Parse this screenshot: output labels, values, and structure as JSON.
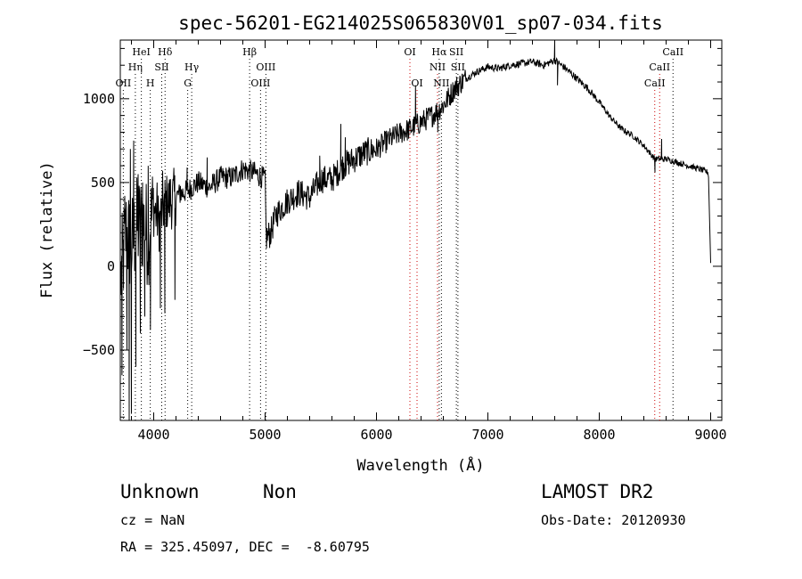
{
  "chart_data": {
    "type": "line",
    "title": "spec-56201-EG214025S065830V01_sp07-034.fits",
    "xlabel": "Wavelength (Å)",
    "ylabel": "Flux (relative)",
    "xlim": [
      3700,
      9100
    ],
    "ylim": [
      -920,
      1350
    ],
    "xticks": [
      4000,
      5000,
      6000,
      7000,
      8000,
      9000
    ],
    "yticks": [
      -500,
      0,
      500,
      1000
    ],
    "grid": false,
    "anchors": [
      [
        3700,
        -100
      ],
      [
        3750,
        200
      ],
      [
        3800,
        120
      ],
      [
        3850,
        230
      ],
      [
        3900,
        260
      ],
      [
        3950,
        180
      ],
      [
        4000,
        350
      ],
      [
        4050,
        260
      ],
      [
        4100,
        380
      ],
      [
        4150,
        390
      ],
      [
        4200,
        420
      ],
      [
        4300,
        450
      ],
      [
        4400,
        500
      ],
      [
        4500,
        470
      ],
      [
        4600,
        530
      ],
      [
        4700,
        530
      ],
      [
        4800,
        580
      ],
      [
        4900,
        560
      ],
      [
        5000,
        520
      ],
      [
        5010,
        170
      ],
      [
        5050,
        200
      ],
      [
        5100,
        310
      ],
      [
        5200,
        390
      ],
      [
        5300,
        440
      ],
      [
        5400,
        410
      ],
      [
        5500,
        520
      ],
      [
        5600,
        520
      ],
      [
        5700,
        600
      ],
      [
        5800,
        640
      ],
      [
        5900,
        680
      ],
      [
        6000,
        700
      ],
      [
        6100,
        750
      ],
      [
        6200,
        790
      ],
      [
        6300,
        820
      ],
      [
        6400,
        860
      ],
      [
        6500,
        900
      ],
      [
        6600,
        960
      ],
      [
        6700,
        1060
      ],
      [
        6800,
        1120
      ],
      [
        6900,
        1160
      ],
      [
        7000,
        1190
      ],
      [
        7100,
        1180
      ],
      [
        7200,
        1200
      ],
      [
        7300,
        1210
      ],
      [
        7400,
        1220
      ],
      [
        7500,
        1200
      ],
      [
        7600,
        1230
      ],
      [
        7700,
        1180
      ],
      [
        7800,
        1120
      ],
      [
        7900,
        1060
      ],
      [
        8000,
        980
      ],
      [
        8100,
        890
      ],
      [
        8200,
        820
      ],
      [
        8300,
        780
      ],
      [
        8400,
        720
      ],
      [
        8500,
        640
      ],
      [
        8600,
        640
      ],
      [
        8700,
        620
      ],
      [
        8800,
        600
      ],
      [
        8900,
        580
      ],
      [
        8980,
        560
      ],
      [
        9000,
        20
      ]
    ],
    "spikes": [
      [
        3715,
        -650
      ],
      [
        3740,
        420
      ],
      [
        3760,
        -500
      ],
      [
        3780,
        -920
      ],
      [
        3790,
        700
      ],
      [
        3800,
        -880
      ],
      [
        3820,
        750
      ],
      [
        3840,
        -600
      ],
      [
        3860,
        550
      ],
      [
        3880,
        -400
      ],
      [
        3900,
        500
      ],
      [
        3920,
        -300
      ],
      [
        3950,
        600
      ],
      [
        3970,
        -380
      ],
      [
        4030,
        500
      ],
      [
        4060,
        -250
      ],
      [
        4080,
        570
      ],
      [
        4100,
        -280
      ],
      [
        4120,
        450
      ],
      [
        4150,
        520
      ],
      [
        4190,
        -200
      ],
      [
        4240,
        480
      ],
      [
        4300,
        590
      ],
      [
        4480,
        650
      ],
      [
        4980,
        560
      ],
      [
        5490,
        660
      ],
      [
        5680,
        850
      ],
      [
        5720,
        770
      ],
      [
        6350,
        1080
      ],
      [
        6550,
        800
      ],
      [
        7600,
        1360
      ],
      [
        7625,
        1080
      ],
      [
        8500,
        560
      ],
      [
        8560,
        760
      ]
    ],
    "lines": [
      {
        "name": "OII",
        "wl": 3727,
        "row": 3,
        "color": "#000000"
      },
      {
        "name": "Hη",
        "wl": 3835,
        "row": 2,
        "color": "#000000"
      },
      {
        "name": "HeI",
        "wl": 3889,
        "row": 1,
        "color": "#000000"
      },
      {
        "name": "H",
        "wl": 3969,
        "row": 3,
        "color": "#000000"
      },
      {
        "name": "Hδ",
        "wl": 4102,
        "row": 1,
        "color": "#000000"
      },
      {
        "name": "SII",
        "wl": 4072,
        "row": 2,
        "color": "#000000"
      },
      {
        "name": "Hγ",
        "wl": 4341,
        "row": 2,
        "color": "#000000"
      },
      {
        "name": "G",
        "wl": 4305,
        "row": 3,
        "color": "#000000"
      },
      {
        "name": "Hβ",
        "wl": 4861,
        "row": 1,
        "color": "#000000"
      },
      {
        "name": "OIII",
        "wl": 4959,
        "row": 3,
        "color": "#000000"
      },
      {
        "name": "OIII",
        "wl": 5007,
        "row": 2,
        "color": "#000000"
      },
      {
        "name": "OI",
        "wl": 6300,
        "row": 1,
        "color": "#cc0000"
      },
      {
        "name": "OI",
        "wl": 6364,
        "row": 3,
        "color": "#cc0000"
      },
      {
        "name": "Hα",
        "wl": 6563,
        "row": 1,
        "color": "#000000"
      },
      {
        "name": "NII",
        "wl": 6548,
        "row": 2,
        "color": "#cc0000"
      },
      {
        "name": "NII",
        "wl": 6583,
        "row": 3,
        "color": "#000000"
      },
      {
        "name": "SII",
        "wl": 6717,
        "row": 1,
        "color": "#000000"
      },
      {
        "name": "SII",
        "wl": 6731,
        "row": 2,
        "color": "#000000"
      },
      {
        "name": "CaII",
        "wl": 8498,
        "row": 3,
        "color": "#cc0000"
      },
      {
        "name": "CaII",
        "wl": 8542,
        "row": 2,
        "color": "#cc0000"
      },
      {
        "name": "CaII",
        "wl": 8662,
        "row": 1,
        "color": "#000000"
      }
    ]
  },
  "info": {
    "class": "Unknown",
    "subclass": "Non",
    "survey": "LAMOST DR2",
    "cz": "cz = NaN",
    "obs_date": "Obs-Date: 20120930",
    "radec": "RA = 325.45097, DEC =  -8.60795"
  }
}
